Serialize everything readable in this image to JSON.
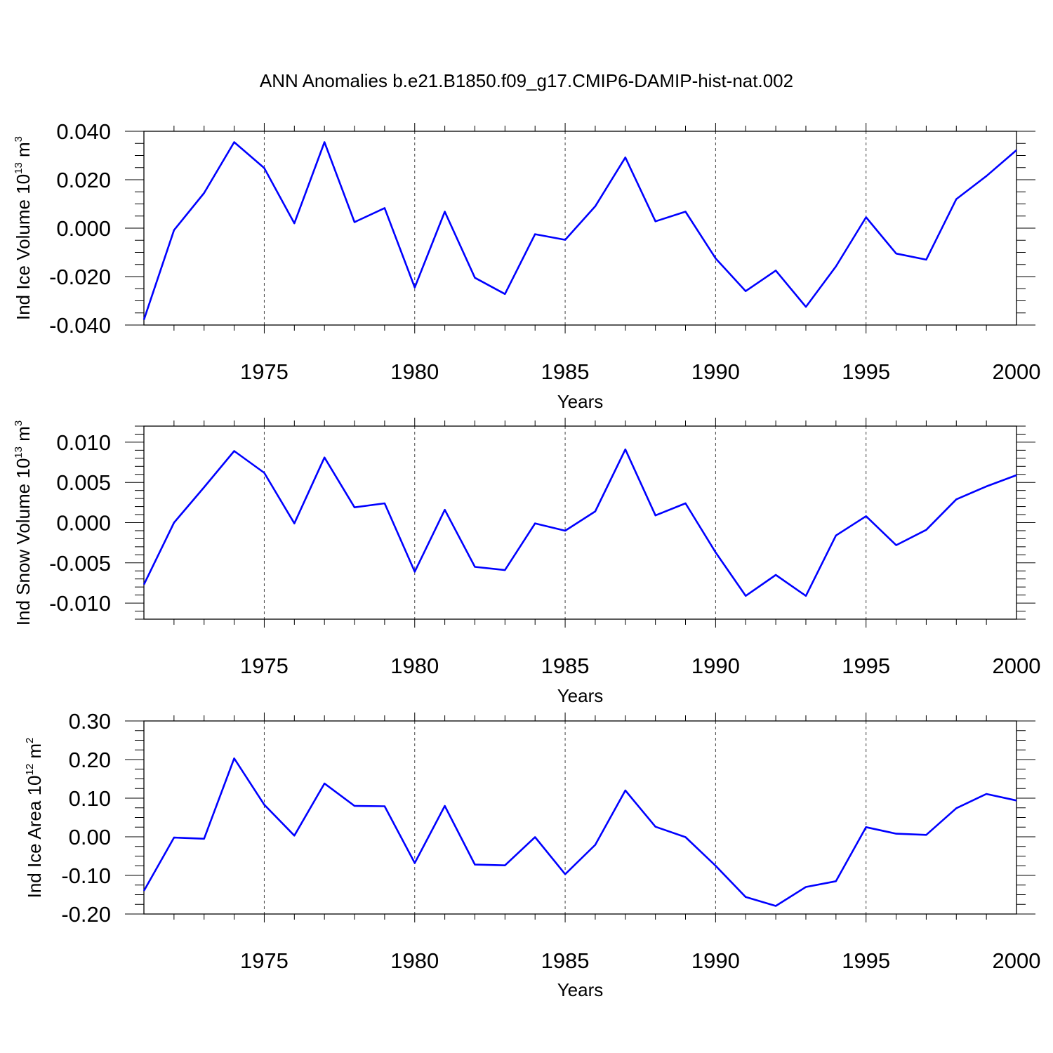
{
  "title": "ANN Anomalies b.e21.B1850.f09_g17.CMIP6-DAMIP-hist-nat.002",
  "colors": {
    "line": "#0000ff",
    "axis": "#000000",
    "grid": "#000000"
  },
  "chart_data": [
    {
      "type": "line",
      "ylabel": {
        "main": "Ind Ice Volume 10",
        "sup": "13",
        "unit": " m",
        "unit_sup": "3"
      },
      "xlabel": "Years",
      "xlim": [
        1971,
        2000
      ],
      "ylim": [
        -0.04,
        0.04
      ],
      "yticks": [
        -0.04,
        -0.02,
        0.0,
        0.02,
        0.04
      ],
      "ytick_labels": [
        "-0.040",
        "-0.020",
        "0.000",
        "0.020",
        "0.040"
      ],
      "xticks": [
        1975,
        1980,
        1985,
        1990,
        1995,
        2000
      ],
      "xtick_labels": [
        "1975",
        "1980",
        "1985",
        "1990",
        "1995",
        "2000"
      ],
      "grid": "vertical dashed at major x ticks",
      "x": [
        1971,
        1972,
        1973,
        1974,
        1975,
        1976,
        1977,
        1978,
        1979,
        1980,
        1981,
        1982,
        1983,
        1984,
        1985,
        1986,
        1987,
        1988,
        1989,
        1990,
        1991,
        1992,
        1993,
        1994,
        1995,
        1996,
        1997,
        1998,
        1999,
        2000
      ],
      "values": [
        -0.0378,
        -0.0008,
        0.0145,
        0.0355,
        0.0248,
        0.002,
        0.0355,
        0.0025,
        0.0083,
        -0.0245,
        0.0068,
        -0.0205,
        -0.0272,
        -0.0025,
        -0.0048,
        0.009,
        0.0292,
        0.0028,
        0.0068,
        -0.0125,
        -0.026,
        -0.0175,
        -0.0325,
        -0.0158,
        0.0045,
        -0.0105,
        -0.013,
        0.012,
        0.0215,
        0.0322
      ]
    },
    {
      "type": "line",
      "ylabel": {
        "main": "Ind Snow Volume 10",
        "sup": "13",
        "unit": " m",
        "unit_sup": "3"
      },
      "xlabel": "Years",
      "xlim": [
        1971,
        2000
      ],
      "ylim": [
        -0.012,
        0.012
      ],
      "yticks": [
        -0.01,
        -0.005,
        0.0,
        0.005,
        0.01
      ],
      "ytick_labels": [
        "-0.010",
        "-0.005",
        "0.000",
        "0.005",
        "0.010"
      ],
      "xticks": [
        1975,
        1980,
        1985,
        1990,
        1995,
        2000
      ],
      "xtick_labels": [
        "1975",
        "1980",
        "1985",
        "1990",
        "1995",
        "2000"
      ],
      "grid": "vertical dashed at major x ticks",
      "x": [
        1971,
        1972,
        1973,
        1974,
        1975,
        1976,
        1977,
        1978,
        1979,
        1980,
        1981,
        1982,
        1983,
        1984,
        1985,
        1986,
        1987,
        1988,
        1989,
        1990,
        1991,
        1992,
        1993,
        1994,
        1995,
        1996,
        1997,
        1998,
        1999,
        2000
      ],
      "values": [
        -0.0077,
        0.0,
        0.0044,
        0.0089,
        0.0062,
        -0.0001,
        0.0081,
        0.0019,
        0.0024,
        -0.0061,
        0.0016,
        -0.0055,
        -0.0059,
        -0.0001,
        -0.001,
        0.0014,
        0.0091,
        0.0009,
        0.0024,
        -0.0037,
        -0.0091,
        -0.0065,
        -0.0091,
        -0.0016,
        0.0008,
        -0.0028,
        -0.0009,
        0.0029,
        0.0045,
        0.0059
      ]
    },
    {
      "type": "line",
      "ylabel": {
        "main": "Ind Ice Area 10",
        "sup": "12",
        "unit": " m",
        "unit_sup": "2"
      },
      "xlabel": "Years",
      "xlim": [
        1971,
        2000
      ],
      "ylim": [
        -0.2,
        0.3
      ],
      "yticks": [
        -0.2,
        -0.1,
        0.0,
        0.1,
        0.2,
        0.3
      ],
      "ytick_labels": [
        "-0.20",
        "-0.10",
        "0.00",
        "0.10",
        "0.20",
        "0.30"
      ],
      "xticks": [
        1975,
        1980,
        1985,
        1990,
        1995,
        2000
      ],
      "xtick_labels": [
        "1975",
        "1980",
        "1985",
        "1990",
        "1995",
        "2000"
      ],
      "grid": "vertical dashed at major x ticks",
      "x": [
        1971,
        1972,
        1973,
        1974,
        1975,
        1976,
        1977,
        1978,
        1979,
        1980,
        1981,
        1982,
        1983,
        1984,
        1985,
        1986,
        1987,
        1988,
        1989,
        1990,
        1991,
        1992,
        1993,
        1994,
        1995,
        1996,
        1997,
        1998,
        1999,
        2000
      ],
      "values": [
        -0.14,
        -0.002,
        -0.005,
        0.203,
        0.083,
        0.003,
        0.138,
        0.08,
        0.079,
        -0.068,
        0.08,
        -0.072,
        -0.074,
        -0.001,
        -0.097,
        -0.021,
        0.12,
        0.026,
        -0.001,
        -0.075,
        -0.156,
        -0.179,
        -0.13,
        -0.115,
        0.025,
        0.008,
        0.005,
        0.074,
        0.111,
        0.094
      ]
    }
  ]
}
